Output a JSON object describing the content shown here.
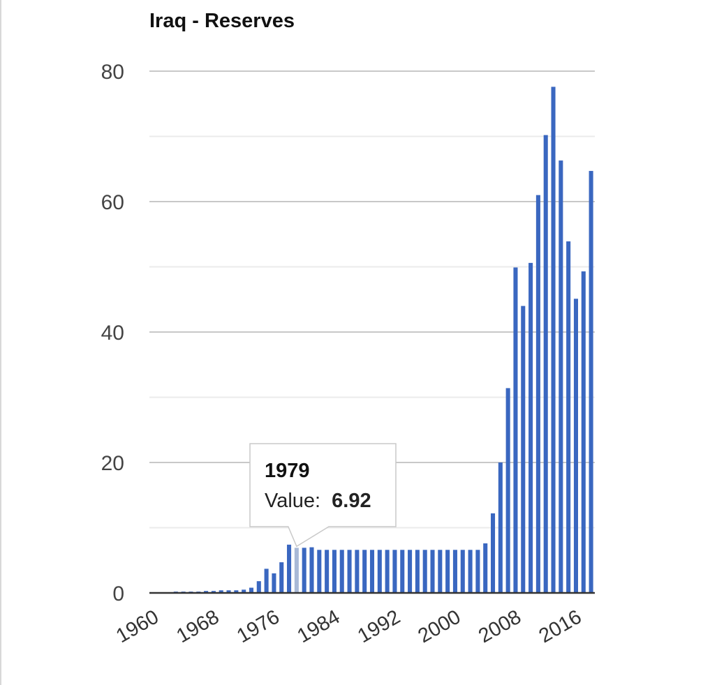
{
  "chart_data": {
    "type": "bar",
    "title": "Iraq - Reserves",
    "xlabel": "",
    "ylabel": "",
    "ylim": [
      0,
      80
    ],
    "yticks": [
      0,
      20,
      40,
      60,
      80
    ],
    "xtick_labels": [
      "1960",
      "1968",
      "1976",
      "1984",
      "1992",
      "2000",
      "2008",
      "2016"
    ],
    "series": [
      {
        "name": "Value",
        "color": "#3a67c0",
        "x": [
          1960,
          1961,
          1962,
          1963,
          1964,
          1965,
          1966,
          1967,
          1968,
          1969,
          1970,
          1971,
          1972,
          1973,
          1974,
          1975,
          1976,
          1977,
          1978,
          1979,
          1980,
          1981,
          1982,
          1983,
          1984,
          1985,
          1986,
          1987,
          1988,
          1989,
          1990,
          1991,
          1992,
          1993,
          1994,
          1995,
          1996,
          1997,
          1998,
          1999,
          2000,
          2001,
          2002,
          2003,
          2004,
          2005,
          2006,
          2007,
          2008,
          2009,
          2010,
          2011,
          2012,
          2013,
          2014,
          2015,
          2016,
          2017,
          2018
        ],
        "values": [
          0.1,
          0.1,
          0.1,
          0.2,
          0.2,
          0.2,
          0.2,
          0.3,
          0.3,
          0.4,
          0.4,
          0.4,
          0.5,
          0.8,
          1.8,
          3.7,
          3.0,
          4.7,
          7.4,
          6.92,
          6.92,
          7.0,
          6.6,
          6.6,
          6.6,
          6.6,
          6.6,
          6.6,
          6.6,
          6.6,
          6.6,
          6.6,
          6.6,
          6.6,
          6.6,
          6.6,
          6.6,
          6.6,
          6.6,
          6.6,
          6.6,
          6.6,
          6.6,
          6.6,
          7.6,
          12.2,
          20.0,
          31.4,
          49.9,
          44.0,
          50.6,
          61.0,
          70.2,
          77.6,
          66.3,
          53.9,
          45.1,
          49.3,
          64.7
        ]
      }
    ],
    "tooltip": {
      "year": "1979",
      "label": "Value:",
      "value": "6.92"
    }
  }
}
